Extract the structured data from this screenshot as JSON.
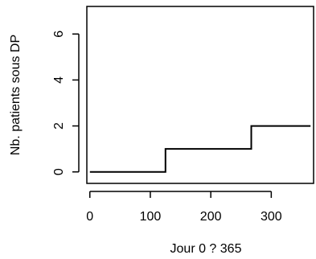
{
  "chart_data": {
    "type": "line",
    "step": true,
    "xlabel": "Jour 0 ? 365",
    "ylabel": "Nb. patients sous DP",
    "xlim": [
      -5,
      370
    ],
    "ylim": [
      -0.5,
      7.2
    ],
    "x_ticks": [
      0,
      100,
      200,
      300
    ],
    "y_ticks": [
      0,
      2,
      4,
      6
    ],
    "grid": false,
    "series": [
      {
        "x": [
          0,
          125,
          125,
          267,
          267,
          365
        ],
        "y": [
          0,
          0,
          1,
          1,
          2,
          2
        ]
      }
    ]
  }
}
